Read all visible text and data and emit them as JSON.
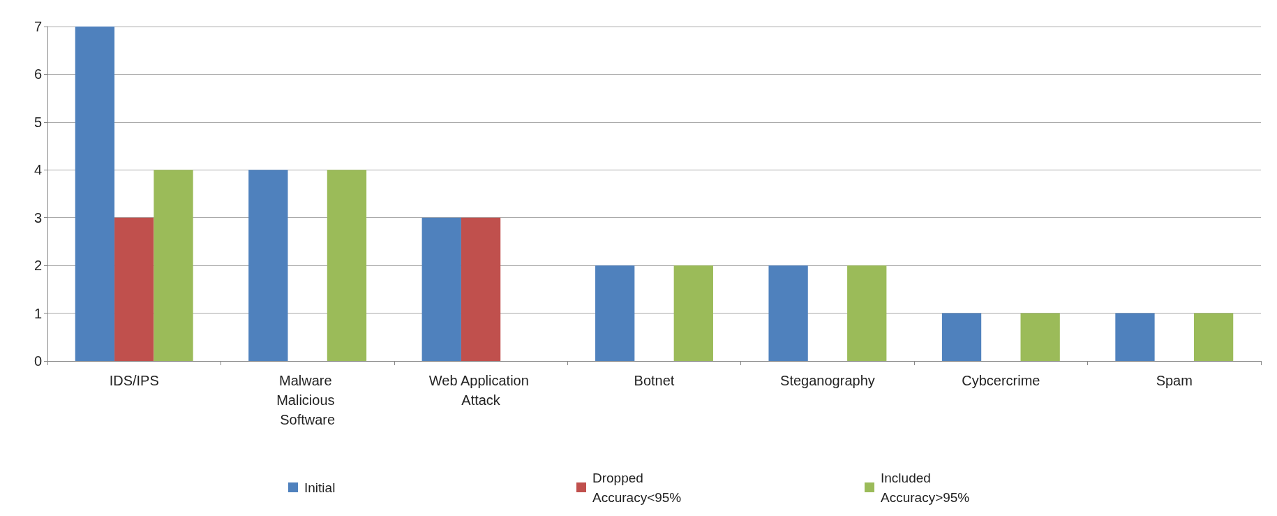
{
  "chart_data": {
    "type": "bar",
    "categories": [
      "IDS/IPS",
      "Malware Malicious Software",
      "Web Application Attack",
      "Botnet",
      "Steganography",
      "Cybcercrime",
      "Spam"
    ],
    "series": [
      {
        "name": "Initial",
        "color": "#4f81bd",
        "values": [
          7,
          4,
          3,
          2,
          2,
          1,
          1
        ]
      },
      {
        "name": "Dropped Accuracy<95%",
        "color": "#c0504d",
        "values": [
          3,
          null,
          3,
          null,
          null,
          null,
          null
        ]
      },
      {
        "name": "Included Accuracy>95%",
        "color": "#9bbb59",
        "values": [
          4,
          4,
          null,
          2,
          2,
          1,
          1
        ]
      }
    ],
    "ylim": [
      0,
      7
    ],
    "yticks": [
      0,
      1,
      2,
      3,
      4,
      5,
      6,
      7
    ],
    "grid": "y",
    "legend": "bottom"
  }
}
